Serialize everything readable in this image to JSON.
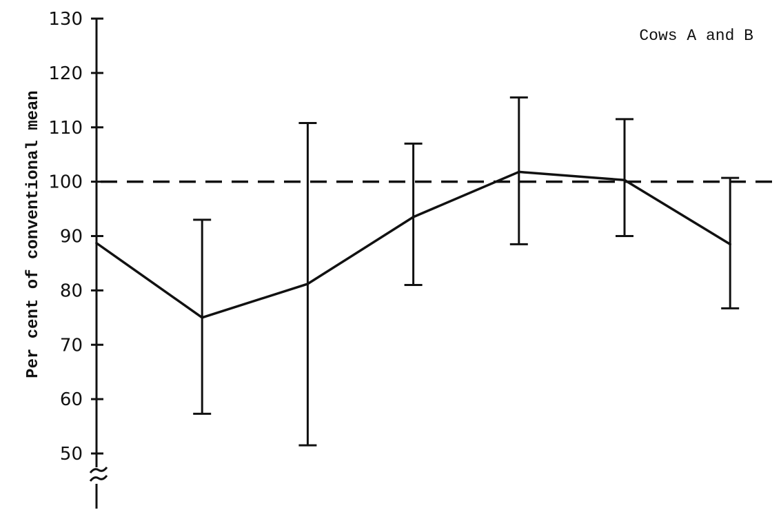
{
  "chart_data": {
    "type": "line",
    "title": "",
    "annotation": "Cows A and B",
    "xlabel": "",
    "ylabel": "Per cent of conventional mean",
    "ylim": [
      50,
      130
    ],
    "y_ticks": [
      50,
      60,
      70,
      80,
      90,
      100,
      110,
      120,
      130
    ],
    "y_axis_break": true,
    "grid": false,
    "legend": "none",
    "reference_line": {
      "y": 100,
      "style": "dashed"
    },
    "x": [
      1,
      2,
      3,
      4,
      5,
      6,
      7
    ],
    "series": [
      {
        "values": [
          88.7,
          75.0,
          81.2,
          93.5,
          101.8,
          100.3,
          88.5
        ],
        "error_low": [
          null,
          57.3,
          51.5,
          81.0,
          88.5,
          90.0,
          76.7
        ],
        "error_high": [
          null,
          93.0,
          110.8,
          107.0,
          115.5,
          111.5,
          100.7
        ]
      }
    ]
  }
}
